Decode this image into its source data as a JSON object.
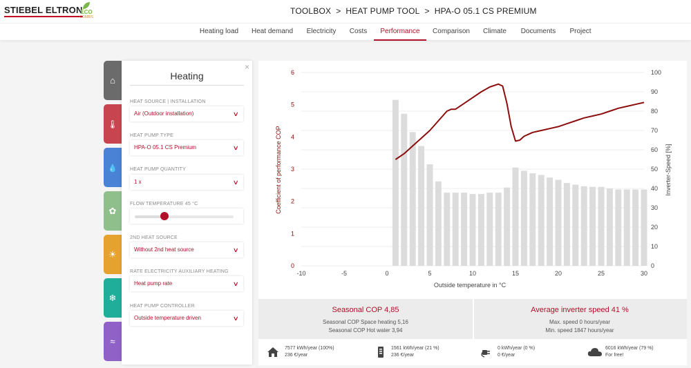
{
  "header": {
    "logo_text": "STIEBEL ELTRON",
    "eco_text": "ECO",
    "eco_sub": "COMBIS",
    "breadcrumb": [
      "TOOLBOX",
      "HEAT PUMP TOOL",
      "HPA-O 05.1 CS PREMIUM"
    ],
    "breadcrumb_sep": ">"
  },
  "nav": {
    "tabs": [
      {
        "label": "Heating load"
      },
      {
        "label": "Heat demand"
      },
      {
        "label": "Electricity"
      },
      {
        "label": "Costs"
      },
      {
        "label": "Performance"
      },
      {
        "label": "Comparison"
      },
      {
        "label": "Climate"
      },
      {
        "label": "Documents"
      },
      {
        "label": "Project"
      }
    ],
    "active": "Performance"
  },
  "side_tabs": [
    {
      "icon": "house-icon",
      "glyph": "⌂",
      "color": "#6b6b6b"
    },
    {
      "icon": "thermometer-icon",
      "glyph": "🌡",
      "color": "#c8454f"
    },
    {
      "icon": "water-drop-icon",
      "glyph": "💧",
      "color": "#4a82d6"
    },
    {
      "icon": "ventilation-icon",
      "glyph": "✿",
      "color": "#8fbf8a"
    },
    {
      "icon": "sun-icon",
      "glyph": "☀",
      "color": "#e6a22e"
    },
    {
      "icon": "snowflake-icon",
      "glyph": "❄",
      "color": "#1fae9a"
    },
    {
      "icon": "swimming-icon",
      "glyph": "≈",
      "color": "#9062c8"
    }
  ],
  "panel": {
    "title": "Heating",
    "close": "×",
    "fields": [
      {
        "label": "HEAT SOURCE | INSTALLATION",
        "value": "Air (Outdoor installation)"
      },
      {
        "label": "HEAT PUMP TYPE",
        "value": "HPA-O 05.1 CS Premium"
      },
      {
        "label": "HEAT PUMP QUANTITY",
        "value": "1 x"
      },
      {
        "label": "FLOW TEMPERATURE 45 °C",
        "slider": 0.3
      },
      {
        "label": "2ND HEAT SOURCE",
        "value": "Without 2nd heat source"
      },
      {
        "label": "RATE ELECTRICITY AUXILIARY HEATING",
        "value": "Heat pump rate"
      },
      {
        "label": "HEAT PUMP CONTROLLER",
        "value": "Outside temperature driven"
      }
    ]
  },
  "chart_data": {
    "type": "bar+line",
    "xlabel": "Outside temperature in °C",
    "ylabel_left": "Coefficient of performance COP",
    "ylabel_right": "Inverter-Speed [%]",
    "xlim": [
      -10,
      30
    ],
    "ylim_left": [
      0,
      6
    ],
    "ylim_right": [
      0,
      100
    ],
    "x_ticks": [
      -10,
      -5,
      0,
      5,
      10,
      15,
      20,
      25,
      30
    ],
    "y_left_ticks": [
      0,
      1,
      2,
      3,
      4,
      5,
      6
    ],
    "y_right_ticks": [
      0,
      10,
      20,
      30,
      40,
      50,
      60,
      70,
      80,
      90,
      100
    ],
    "bars": {
      "name": "COP",
      "axis": "left",
      "x": [
        1,
        2,
        3,
        4,
        5,
        6,
        7,
        8,
        9,
        10,
        11,
        12,
        13,
        14,
        15,
        16,
        17,
        18,
        19,
        20,
        21,
        22,
        23,
        24,
        25,
        26,
        27,
        28,
        29,
        30
      ],
      "values": [
        5.15,
        4.72,
        4.15,
        3.72,
        3.15,
        2.62,
        2.27,
        2.27,
        2.27,
        2.23,
        2.23,
        2.27,
        2.27,
        2.43,
        3.05,
        2.95,
        2.87,
        2.82,
        2.74,
        2.67,
        2.57,
        2.52,
        2.47,
        2.45,
        2.45,
        2.4,
        2.37,
        2.37,
        2.37,
        2.37
      ],
      "color": "#dcdcdc"
    },
    "line": {
      "name": "Inverter speed",
      "axis": "right",
      "color": "#8b0d0d",
      "x": [
        1,
        2,
        3,
        4,
        5,
        6,
        7,
        7.5,
        8,
        9,
        10,
        11,
        12,
        13,
        13.5,
        14,
        14.5,
        15,
        15.5,
        16,
        17,
        18,
        19,
        20,
        21,
        22,
        23,
        24,
        25,
        26,
        27,
        28,
        29,
        30
      ],
      "values": [
        55,
        58,
        62,
        66,
        70,
        75,
        80,
        81,
        81,
        84,
        87,
        90,
        92.5,
        94,
        93,
        84,
        72,
        64.5,
        65,
        67,
        69,
        70,
        71,
        72,
        73.5,
        75,
        76.5,
        77.5,
        78.5,
        80,
        81.5,
        82.5,
        83.5,
        84.5
      ]
    }
  },
  "stats": {
    "left": {
      "title": "Seasonal COP 4,85",
      "lines": [
        "Seasonal COP Space heating 5,16",
        "Seasonal COP Hot water 3,94"
      ]
    },
    "right": {
      "title": "Average inverter speed 41 %",
      "lines": [
        "Max. speed 0 hours/year",
        "Min. speed 1847 hours/year"
      ]
    }
  },
  "energy": [
    {
      "icon": "house-icon",
      "line1": "7577 kWh/year (100%)",
      "line2": "236 €/year"
    },
    {
      "icon": "battery-icon",
      "line1": "1561 kWh/year (21 %)",
      "line2": "236 €/year"
    },
    {
      "icon": "plug-icon",
      "line1": "0 kWh/year (0 %)",
      "line2": "0 €/year"
    },
    {
      "icon": "cloud-icon",
      "line1": "6016 kWh/year (79 %)",
      "line2": "For free!"
    }
  ],
  "colors": {
    "accent": "#b0102a",
    "bar": "#dcdcdc",
    "line": "#8b0d0d"
  }
}
